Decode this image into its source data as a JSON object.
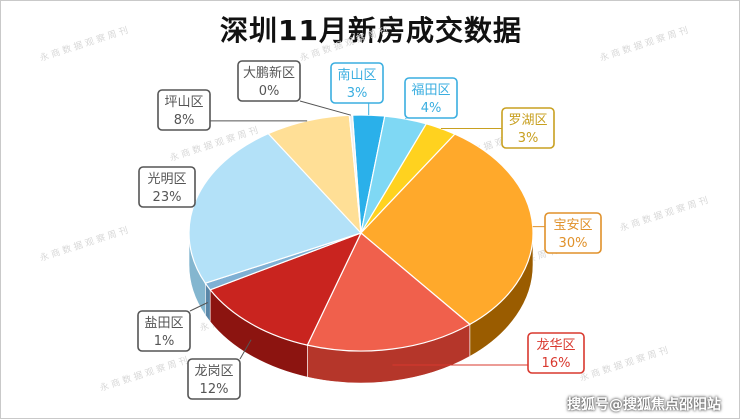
{
  "chart_data": {
    "type": "pie",
    "title": "深圳11月新房成交数据",
    "slices": [
      {
        "label": "南山区",
        "percent_label": "3%",
        "value": 3,
        "color": "#2ab0ea",
        "side": "#1b7ea8",
        "label_color": "#3aaee0"
      },
      {
        "label": "福田区",
        "percent_label": "4%",
        "value": 4,
        "color": "#7fd8f4",
        "side": "#4aa6c6",
        "label_color": "#3aaee0"
      },
      {
        "label": "罗湖区",
        "percent_label": "3%",
        "value": 3,
        "color": "#ffd21f",
        "side": "#c49f00",
        "label_color": "#c8a020"
      },
      {
        "label": "宝安区",
        "percent_label": "30%",
        "value": 30,
        "color": "#ffa92b",
        "side": "#9a5c00",
        "label_color": "#e0912a"
      },
      {
        "label": "龙华区",
        "percent_label": "16%",
        "value": 16,
        "color": "#f0604c",
        "side": "#b5362a",
        "label_color": "#d9382e"
      },
      {
        "label": "龙岗区",
        "percent_label": "12%",
        "value": 12,
        "color": "#c9241f",
        "side": "#8c1410",
        "label_color": "#555555"
      },
      {
        "label": "盐田区",
        "percent_label": "1%",
        "value": 1,
        "color": "#7fb0d4",
        "side": "#5a87a8",
        "label_color": "#555555"
      },
      {
        "label": "光明区",
        "percent_label": "23%",
        "value": 23,
        "color": "#b3e1f8",
        "side": "#84b6cf",
        "label_color": "#555555"
      },
      {
        "label": "坪山区",
        "percent_label": "8%",
        "value": 8,
        "color": "#ffdf96",
        "side": "#c9a85a",
        "label_color": "#555555"
      },
      {
        "label": "大鹏新区",
        "percent_label": "0%",
        "value": 0.3,
        "color": "#eeeeee",
        "side": "#aaaaaa",
        "label_color": "#555555"
      }
    ]
  },
  "watermark_text": "搜狐号@搜狐焦点邵阳站",
  "background_watermark": "永 商 数 据 观 察 周 刊"
}
